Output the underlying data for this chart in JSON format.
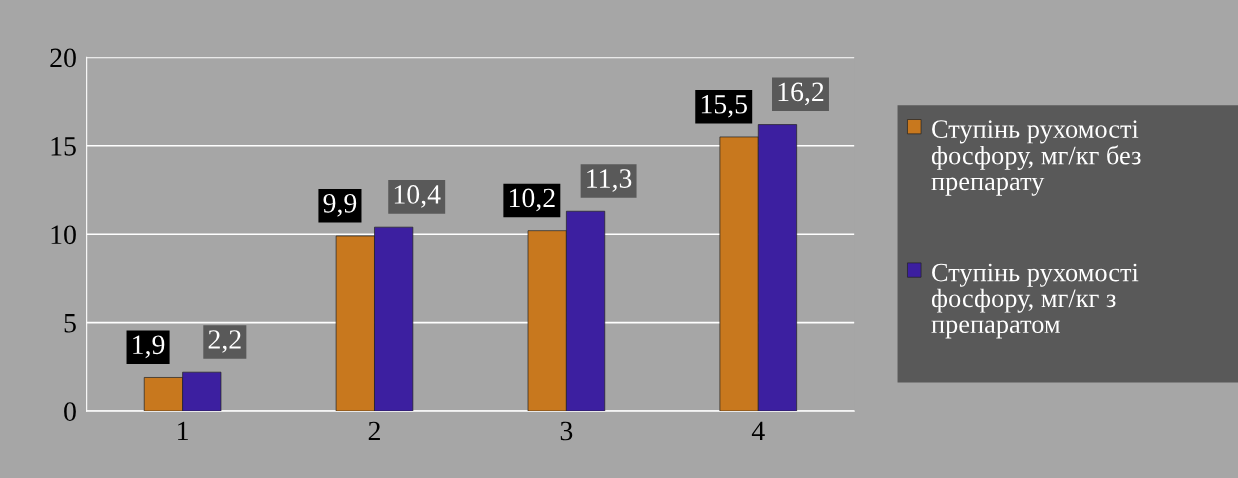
{
  "chart_data": {
    "type": "bar",
    "categories": [
      "1",
      "2",
      "3",
      "4"
    ],
    "series": [
      {
        "name": "Ступінь рухомості фосфору, мг/кг без препарату",
        "color": "#c8781e",
        "values": [
          1.9,
          9.9,
          10.2,
          15.5
        ],
        "value_labels": [
          "1,9",
          "9,9",
          "10,2",
          "15,5"
        ]
      },
      {
        "name": "Ступінь рухомості фосфору, мг/кг з препаратом",
        "color": "#3c1fa0",
        "values": [
          2.2,
          10.4,
          11.3,
          16.2
        ],
        "value_labels": [
          "2,2",
          "10,4",
          "11,3",
          "16,2"
        ]
      }
    ],
    "ylim": [
      0,
      20
    ],
    "yticks": [
      0,
      5,
      10,
      15,
      20
    ],
    "grid": "y",
    "legend": "right"
  }
}
